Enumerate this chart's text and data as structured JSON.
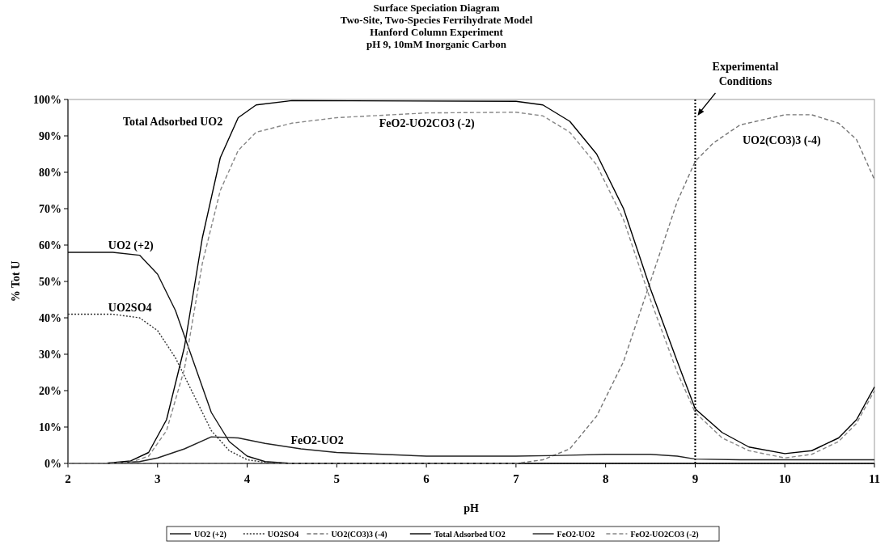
{
  "chart_data": {
    "type": "line",
    "title": "Surface Speciation Diagram",
    "subtitle": "Two-Site, Two-Species Ferrihydrate Model\nHanford Column Experiment\npH 9, 10mM Inorganic Carbon",
    "xlabel": "pH",
    "ylabel": "% Tot U",
    "xlim": [
      2,
      11
    ],
    "xticks": [
      2,
      3,
      4,
      5,
      6,
      7,
      8,
      9,
      10,
      11
    ],
    "ylim": [
      0,
      100
    ],
    "yticks": [
      {
        "value": 0,
        "label": "0%"
      },
      {
        "value": 10,
        "label": "10%"
      },
      {
        "value": 20,
        "label": "20%"
      },
      {
        "value": 30,
        "label": "30%"
      },
      {
        "value": 40,
        "label": "40%"
      },
      {
        "value": 50,
        "label": "50%"
      },
      {
        "value": 60,
        "label": "60%"
      },
      {
        "value": 70,
        "label": "70%"
      },
      {
        "value": 80,
        "label": "80%"
      },
      {
        "value": 90,
        "label": "90%"
      },
      {
        "value": 100,
        "label": "100%"
      }
    ],
    "grid": false,
    "legend": "bottom",
    "marker": "none",
    "series": [
      {
        "name": "UO2 (+2)",
        "color": "#111111",
        "line_style": "solid",
        "x": [
          2,
          2.5,
          2.8,
          3,
          3.2,
          3.4,
          3.6,
          3.8,
          4,
          4.2,
          4.5,
          11
        ],
        "values": [
          58,
          58,
          57.2,
          52,
          42,
          28,
          14,
          6,
          2,
          0.5,
          0,
          0
        ]
      },
      {
        "name": "UO2SO4",
        "color": "#333333",
        "line_style": "dotted",
        "x": [
          2,
          2.5,
          2.8,
          3,
          3.2,
          3.4,
          3.6,
          3.8,
          4,
          4.2,
          4.5,
          11
        ],
        "values": [
          41,
          41,
          40,
          36.5,
          29,
          19,
          9,
          3.5,
          1,
          0.3,
          0,
          0
        ]
      },
      {
        "name": "UO2(CO3)3 (-4)",
        "color": "#777777",
        "line_style": "dashed",
        "x": [
          2,
          7,
          7.3,
          7.6,
          7.9,
          8.2,
          8.5,
          8.8,
          9,
          9.2,
          9.5,
          10,
          10.3,
          10.6,
          10.8,
          11
        ],
        "values": [
          0,
          0,
          1,
          4,
          13,
          28,
          50,
          72,
          83,
          88,
          93,
          95.8,
          95.8,
          93.5,
          89,
          78
        ]
      },
      {
        "name": "Total Adsorbed UO2",
        "color": "#000000",
        "line_style": "solid",
        "x": [
          2.4,
          2.7,
          2.9,
          3.1,
          3.3,
          3.5,
          3.7,
          3.9,
          4.1,
          4.5,
          7,
          7.3,
          7.6,
          7.9,
          8.2,
          8.5,
          8.8,
          9,
          9.3,
          9.6,
          10,
          10.3,
          10.6,
          10.8,
          11
        ],
        "values": [
          0,
          0.7,
          3,
          12,
          32,
          62,
          84,
          95,
          98.5,
          99.7,
          99.5,
          98.5,
          94,
          85,
          70,
          48,
          28,
          15,
          8.5,
          4.5,
          2.7,
          3.5,
          7,
          12,
          21
        ]
      },
      {
        "name": "FeO2-UO2",
        "color": "#222222",
        "line_style": "solid",
        "x": [
          2.4,
          2.8,
          3,
          3.3,
          3.6,
          3.9,
          4.2,
          4.6,
          5,
          6,
          7,
          7.5,
          8,
          8.5,
          8.8,
          9,
          9.5,
          10,
          11
        ],
        "values": [
          0,
          0.5,
          1.5,
          4,
          7.3,
          7,
          5.5,
          4,
          3,
          2,
          2,
          2.2,
          2.5,
          2.5,
          2,
          1.2,
          1,
          1,
          1
        ]
      },
      {
        "name": "FeO2-UO2CO3 (-2)",
        "color": "#888888",
        "line_style": "dashed",
        "x": [
          2.4,
          2.7,
          2.9,
          3.1,
          3.3,
          3.5,
          3.7,
          3.9,
          4.1,
          4.5,
          5,
          6,
          7,
          7.3,
          7.6,
          7.9,
          8.2,
          8.5,
          8.8,
          9,
          9.3,
          9.6,
          10,
          10.3,
          10.6,
          10.8,
          11
        ],
        "values": [
          0,
          0.3,
          2,
          9,
          26,
          55,
          75,
          86,
          91,
          93.5,
          95,
          96.3,
          96.5,
          95.5,
          91,
          82,
          67,
          45,
          25,
          14,
          7,
          3.5,
          1.5,
          2.5,
          6,
          11,
          20
        ]
      }
    ],
    "annotations": [
      "Total Adsorbed UO2",
      "FeO2-UO2CO3 (-2)",
      "UO2(CO3)3 (-4)",
      "UO2 (+2)",
      "UO2SO4",
      "FeO2-UO2"
    ],
    "ref_lines": [
      {
        "axis": "x",
        "value": 9,
        "label": "Experimental Conditions",
        "color": "#000000",
        "line_style": "dotted"
      }
    ]
  }
}
